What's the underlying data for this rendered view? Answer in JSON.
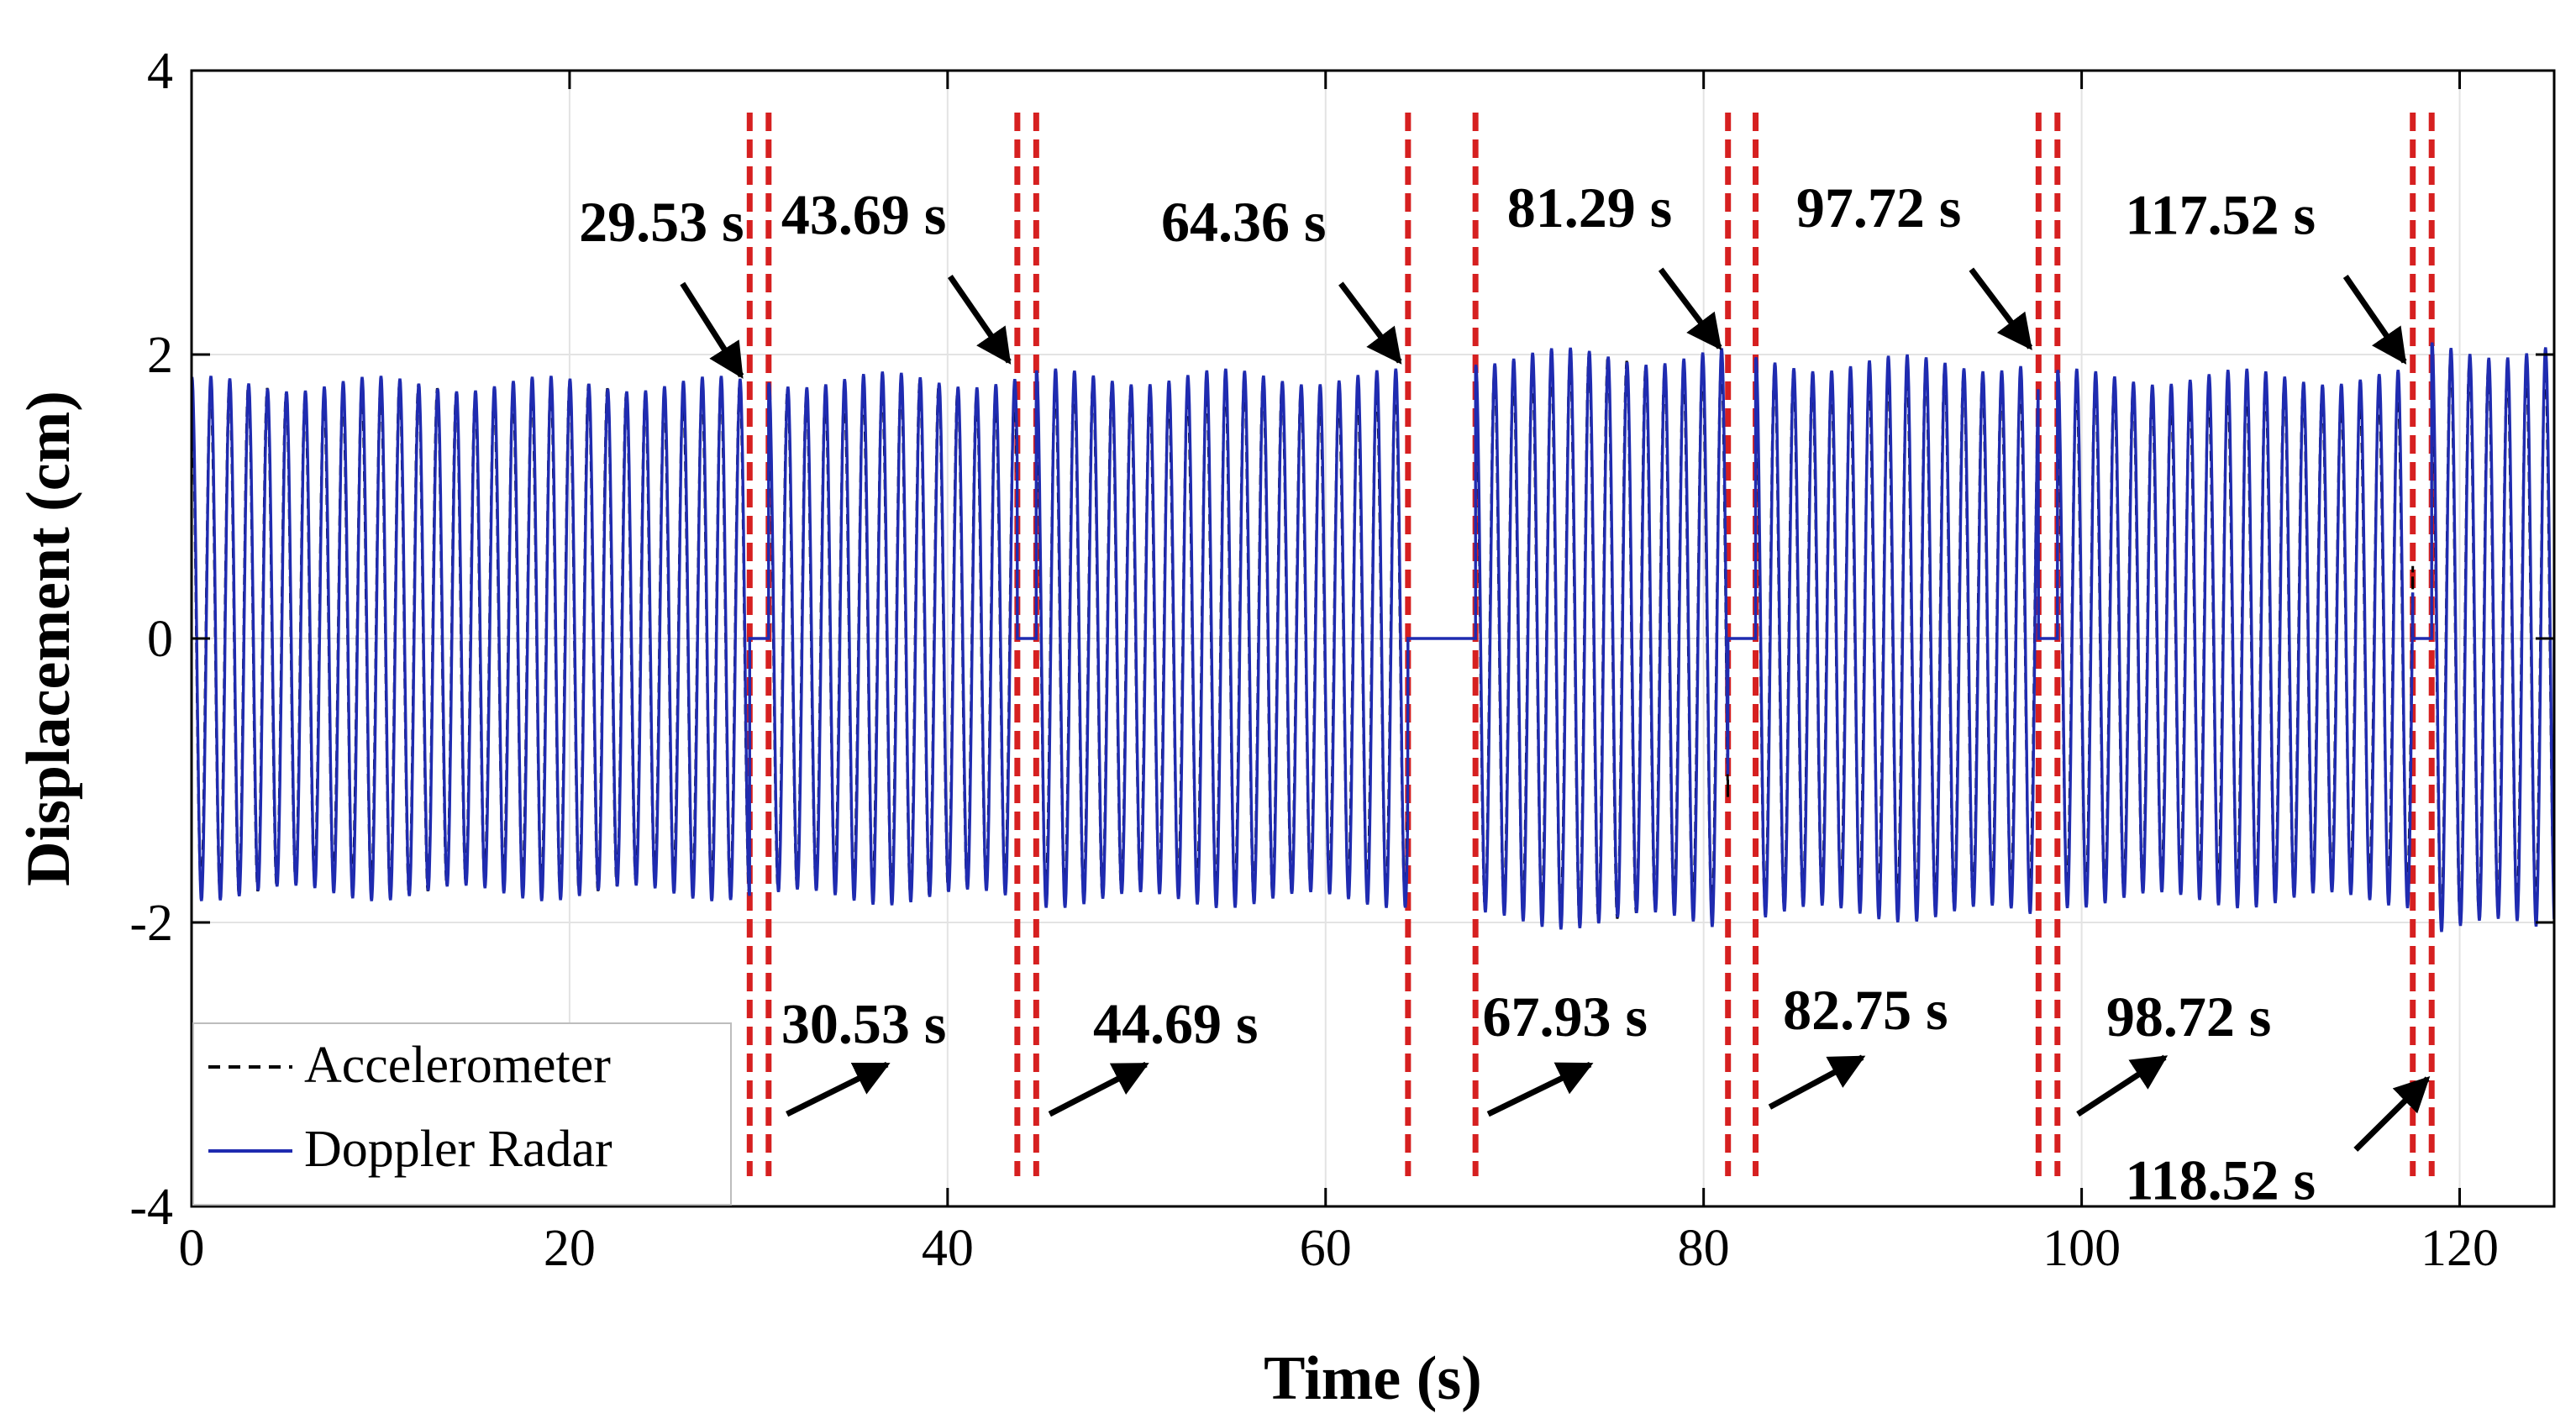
{
  "chart_data": {
    "type": "line",
    "xlabel": "Time (s)",
    "ylabel": "Displacement (cm)",
    "xlim": [
      0,
      125
    ],
    "ylim": [
      -4,
      4
    ],
    "xticks": [
      0,
      20,
      40,
      60,
      80,
      100,
      120
    ],
    "yticks": [
      -4,
      -2,
      0,
      2,
      4
    ],
    "grid": true,
    "legend_position": "bottom-left",
    "oscillation_period_s": 1.0,
    "series": [
      {
        "name": "Accelerometer",
        "style": "dashed",
        "color": "#000000",
        "segments": [
          {
            "start": 0,
            "end": 29.53,
            "amplitude": 1.8
          },
          {
            "start": 30.53,
            "end": 43.69,
            "amplitude": 1.82
          },
          {
            "start": 44.69,
            "end": 64.36,
            "amplitude": 1.82
          },
          {
            "start": 67.93,
            "end": 81.29,
            "amplitude": 2.0
          },
          {
            "start": 82.75,
            "end": 97.72,
            "amplitude": 1.9
          },
          {
            "start": 98.72,
            "end": 117.52,
            "amplitude": 1.8
          },
          {
            "start": 118.52,
            "end": 125,
            "amplitude": 2.0
          }
        ]
      },
      {
        "name": "Doppler Radar",
        "style": "solid",
        "color": "#1f2bb0",
        "segments": [
          {
            "start": 0,
            "end": 29.53,
            "amplitude": 1.85
          },
          {
            "start": 30.53,
            "end": 43.69,
            "amplitude": 1.88
          },
          {
            "start": 44.69,
            "end": 64.36,
            "amplitude": 1.9
          },
          {
            "start": 67.93,
            "end": 81.29,
            "amplitude": 2.05
          },
          {
            "start": 82.75,
            "end": 97.72,
            "amplitude": 2.0
          },
          {
            "start": 98.72,
            "end": 117.52,
            "amplitude": 1.9
          },
          {
            "start": 118.52,
            "end": 125,
            "amplitude": 2.1
          }
        ]
      }
    ],
    "markers": {
      "color": "#d62020",
      "times": [
        29.53,
        30.53,
        43.69,
        44.69,
        64.36,
        67.93,
        81.29,
        82.75,
        97.72,
        98.72,
        117.52,
        118.52
      ]
    },
    "annotations": [
      {
        "label": "29.53 s",
        "x": 29.53,
        "text_x": 20.5,
        "text_y": 2.8,
        "tip_y": 1.85,
        "tail_y": 2.5
      },
      {
        "label": "43.69 s",
        "x": 43.69,
        "text_x": 31.2,
        "text_y": 2.85,
        "tip_y": 1.95,
        "tail_y": 2.55
      },
      {
        "label": "64.36 s",
        "x": 64.36,
        "text_x": 51.3,
        "text_y": 2.8,
        "tip_y": 1.95,
        "tail_y": 2.5
      },
      {
        "label": "81.29 s",
        "x": 81.29,
        "text_x": 69.6,
        "text_y": 2.9,
        "tip_y": 2.05,
        "tail_y": 2.6
      },
      {
        "label": "97.72 s",
        "x": 97.72,
        "text_x": 84.9,
        "text_y": 2.9,
        "tip_y": 2.05,
        "tail_y": 2.6
      },
      {
        "label": "117.52 s",
        "x": 117.52,
        "text_x": 102.3,
        "text_y": 2.85,
        "tip_y": 1.95,
        "tail_y": 2.55
      },
      {
        "label": "30.53 s",
        "x": 30.53,
        "text_x": 31.2,
        "text_y": -2.85,
        "tip_y": -3.0,
        "tail_y": -3.35,
        "tail_x": 31.5,
        "tip_x": 36.8
      },
      {
        "label": "44.69 s",
        "x": 44.69,
        "text_x": 47.7,
        "text_y": -2.85,
        "tip_y": -3.0,
        "tail_y": -3.35,
        "tail_x": 45.4,
        "tip_x": 50.5
      },
      {
        "label": "67.93 s",
        "x": 67.93,
        "text_x": 68.3,
        "text_y": -2.8,
        "tip_y": -3.0,
        "tail_y": -3.35,
        "tail_x": 68.6,
        "tip_x": 74.0
      },
      {
        "label": "82.75 s",
        "x": 82.75,
        "text_x": 84.2,
        "text_y": -2.75,
        "tip_y": -2.95,
        "tail_y": -3.3,
        "tail_x": 83.5,
        "tip_x": 88.4
      },
      {
        "label": "98.72 s",
        "x": 98.72,
        "text_x": 101.3,
        "text_y": -2.8,
        "tip_y": -2.95,
        "tail_y": -3.35,
        "tail_x": 99.8,
        "tip_x": 104.4
      },
      {
        "label": "118.52 s",
        "x": 118.52,
        "text_x": 102.3,
        "text_y": -3.95,
        "tip_y": -3.1,
        "tail_y": -3.6,
        "tail_x": 114.5,
        "tip_x": 118.3
      }
    ]
  }
}
